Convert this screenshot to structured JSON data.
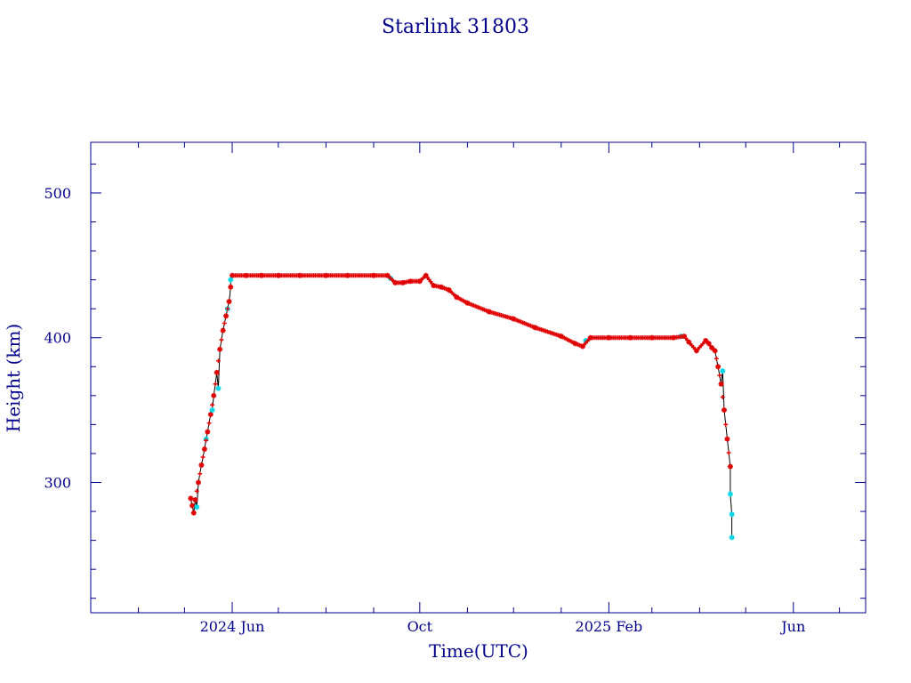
{
  "chart_data": {
    "type": "scatter",
    "title": "Starlink 31803",
    "xlabel": "Time(UTC)",
    "ylabel": "Height (km)",
    "x_tick_labels": [
      {
        "date": "2024-06-01",
        "label": "2024 Jun"
      },
      {
        "date": "2024-10-01",
        "label": "Oct"
      },
      {
        "date": "2025-02-01",
        "label": "2025 Feb"
      },
      {
        "date": "2025-06-01",
        "label": "Jun"
      }
    ],
    "y_ticks": [
      300,
      400,
      500
    ],
    "xlim": [
      "2024-03-01",
      "2025-07-18"
    ],
    "ylim": [
      210,
      535
    ],
    "grid": false,
    "legend": "none",
    "colors": {
      "axis": "#00008b",
      "primary": "#e00000",
      "secondary": "#00d8e8",
      "line": "#000000"
    },
    "series": [
      {
        "color": "#e00000",
        "marker": "asterisk",
        "x": [
          "2024-05-05",
          "2024-05-06",
          "2024-05-07",
          "2024-05-08",
          "2024-05-10",
          "2024-05-12",
          "2024-05-14",
          "2024-05-16",
          "2024-05-18",
          "2024-05-20",
          "2024-05-22",
          "2024-05-24",
          "2024-05-26",
          "2024-05-28",
          "2024-05-30",
          "2024-05-31",
          "2024-06-01",
          "2024-06-10",
          "2024-06-20",
          "2024-07-01",
          "2024-07-15",
          "2024-08-01",
          "2024-08-15",
          "2024-09-01",
          "2024-09-10",
          "2024-09-15",
          "2024-09-20",
          "2024-09-25",
          "2024-10-01",
          "2024-10-05",
          "2024-10-10",
          "2024-10-15",
          "2024-10-20",
          "2024-10-25",
          "2024-11-01",
          "2024-11-15",
          "2024-12-01",
          "2024-12-15",
          "2025-01-01",
          "2025-01-10",
          "2025-01-15",
          "2025-01-20",
          "2025-02-01",
          "2025-02-15",
          "2025-03-01",
          "2025-03-15",
          "2025-03-22",
          "2025-03-25",
          "2025-03-30",
          "2025-04-05",
          "2025-04-07",
          "2025-04-09",
          "2025-04-11",
          "2025-04-13",
          "2025-04-15",
          "2025-04-17",
          "2025-04-19",
          "2025-04-21"
        ],
        "y": [
          289,
          284,
          279,
          288,
          300,
          312,
          323,
          335,
          347,
          360,
          376,
          392,
          405,
          415,
          425,
          435,
          443,
          443,
          443,
          443,
          443,
          443,
          443,
          443,
          443,
          438,
          438,
          439,
          439,
          443,
          436,
          435,
          433,
          428,
          424,
          418,
          413,
          407,
          401,
          396,
          394,
          400,
          400,
          400,
          400,
          400,
          401,
          397,
          391,
          398,
          396,
          393,
          391,
          380,
          368,
          350,
          330,
          311
        ]
      },
      {
        "color": "#00d8e8",
        "marker": "asterisk",
        "x": [
          "2024-05-09",
          "2024-05-15",
          "2024-05-19",
          "2024-05-23",
          "2024-05-29",
          "2024-05-31",
          "2024-09-12",
          "2025-01-17",
          "2025-03-20",
          "2025-04-16",
          "2025-04-21",
          "2025-04-22",
          "2025-04-22"
        ],
        "y": [
          283,
          330,
          350,
          365,
          420,
          440,
          441,
          398,
          401,
          377,
          292,
          278,
          262
        ]
      }
    ]
  }
}
